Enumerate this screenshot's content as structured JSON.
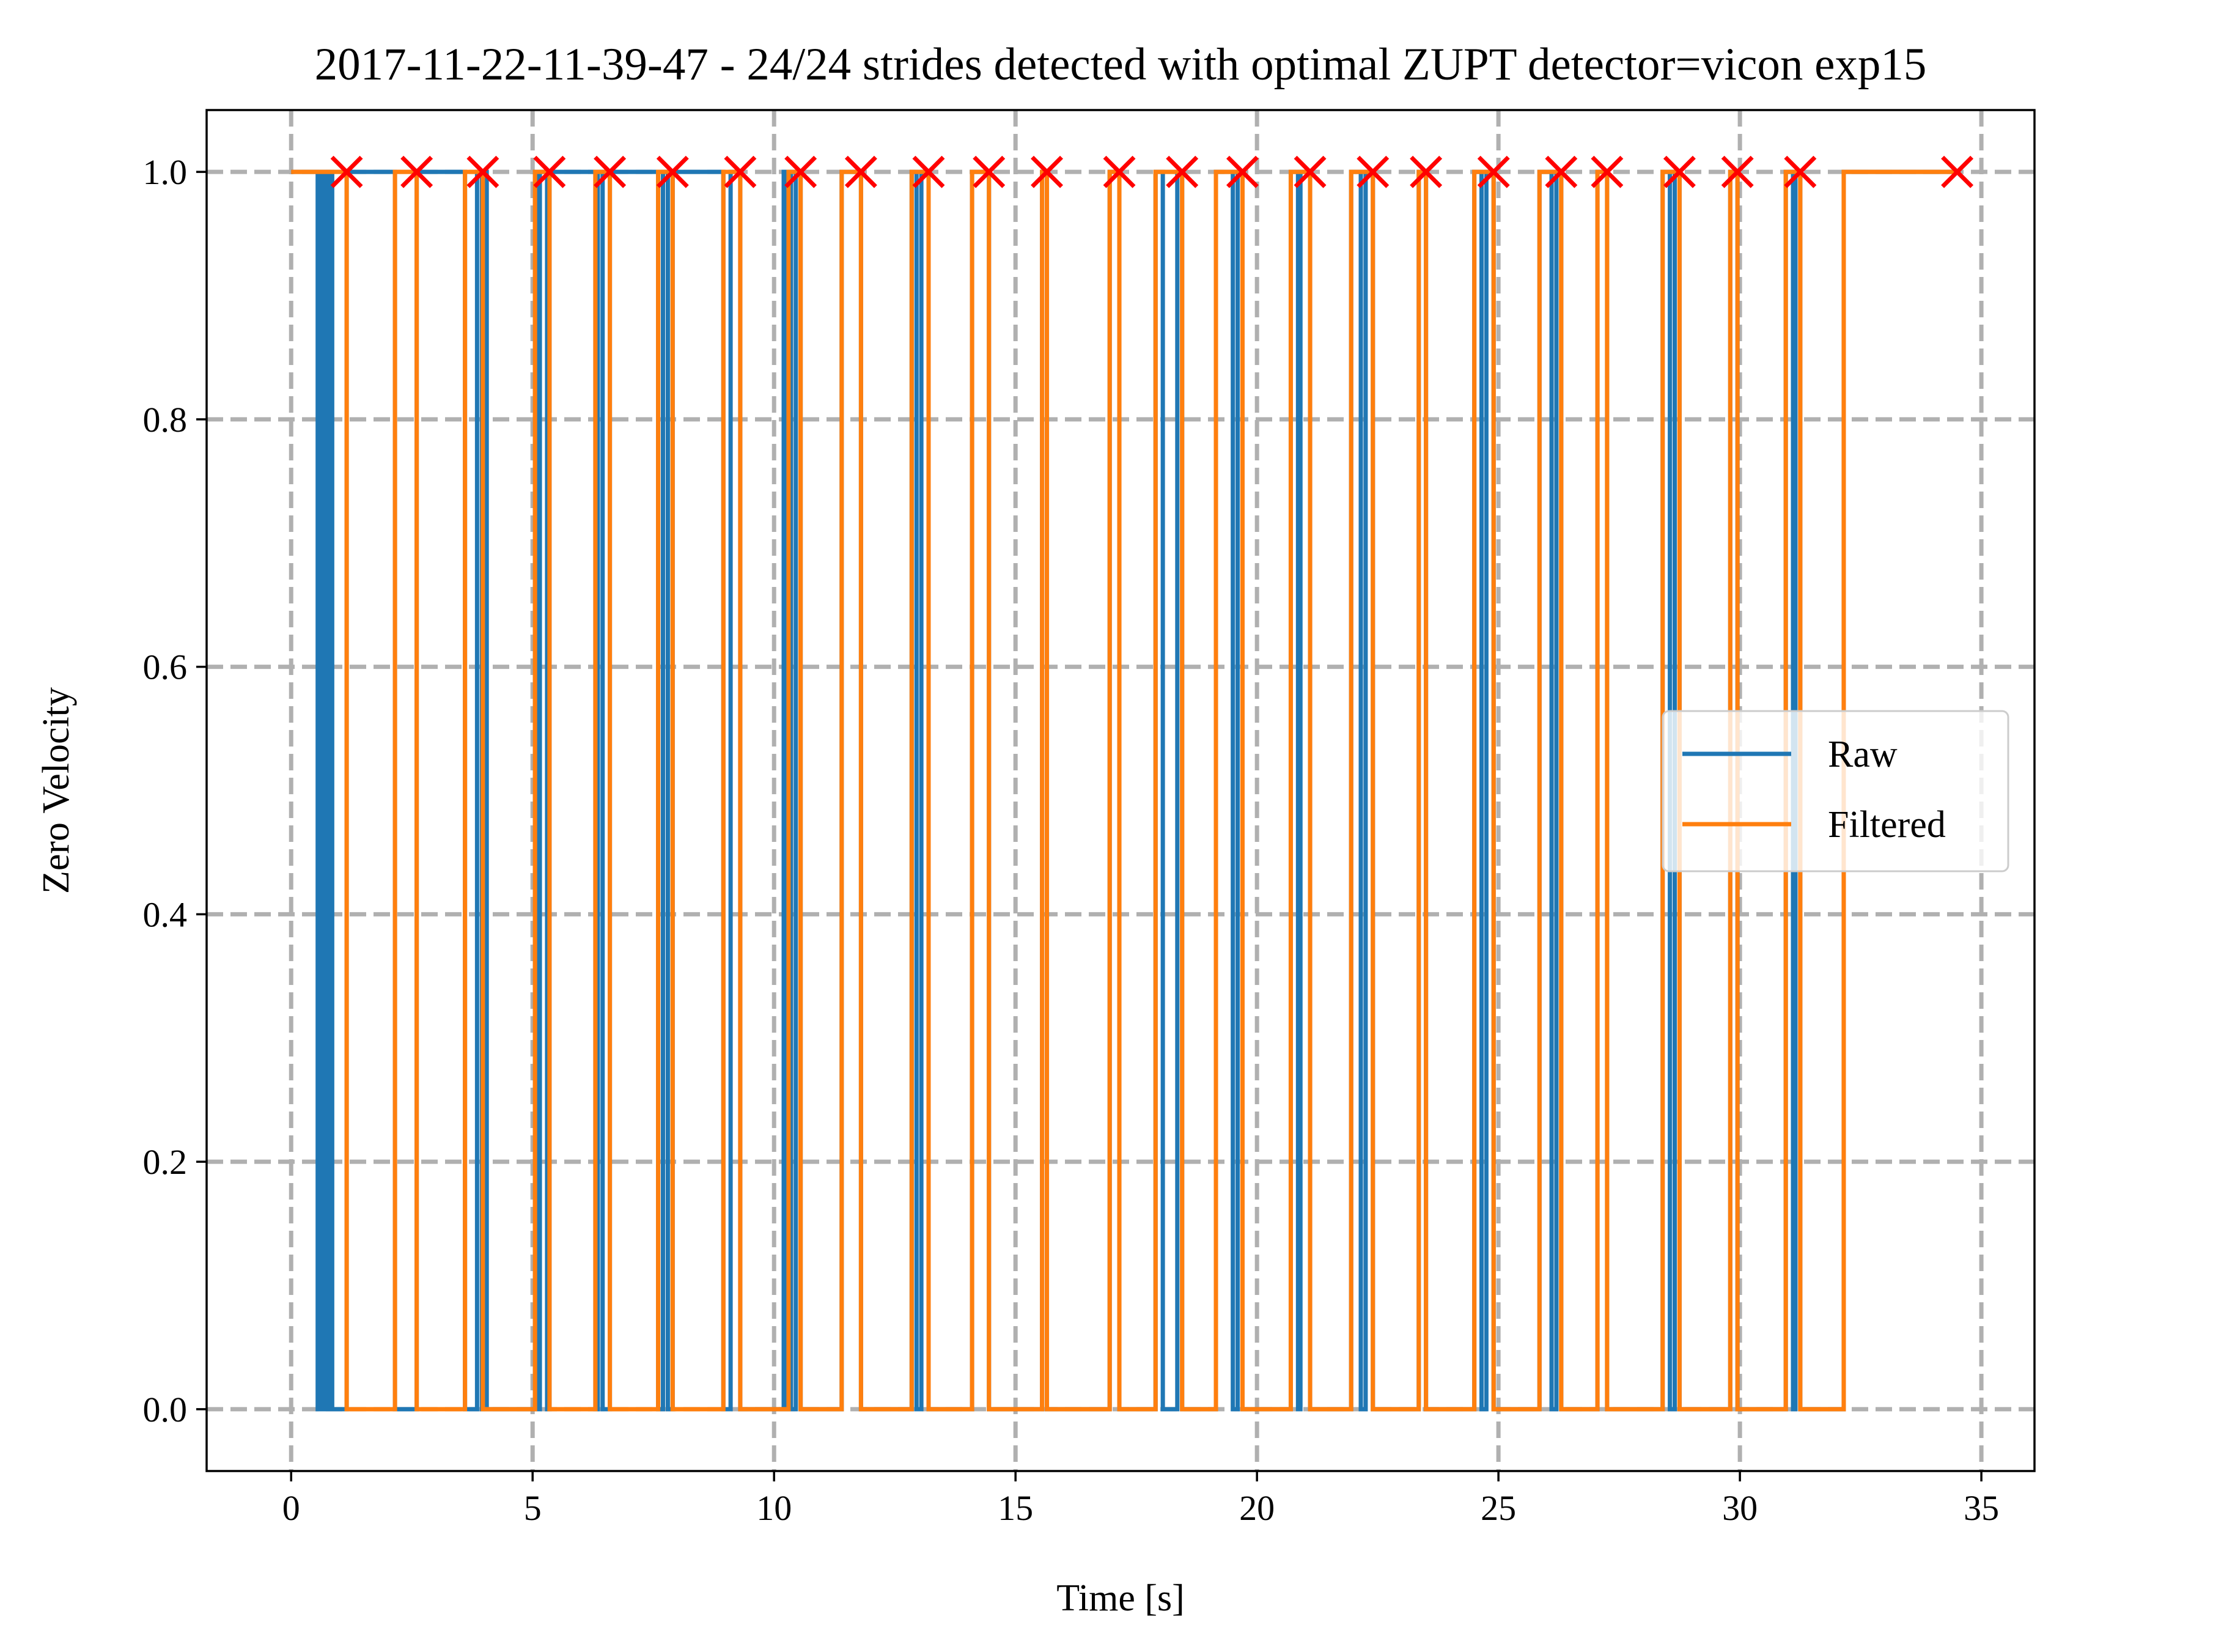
{
  "chart_data": {
    "type": "line",
    "title": "2017-11-22-11-39-47 - 24/24 strides detected with optimal ZUPT detector=vicon exp15",
    "xlabel": "Time [s]",
    "ylabel": "Zero Velocity",
    "xlim": [
      -1.75,
      36.1
    ],
    "ylim": [
      -0.05,
      1.05
    ],
    "xticks": [
      0,
      5,
      10,
      15,
      20,
      25,
      30,
      35
    ],
    "yticks": [
      0.0,
      0.2,
      0.4,
      0.6,
      0.8,
      1.0
    ],
    "xtick_labels": [
      "0",
      "5",
      "10",
      "15",
      "20",
      "25",
      "30",
      "35"
    ],
    "ytick_labels": [
      "0.0",
      "0.2",
      "0.4",
      "0.6",
      "0.8",
      "1.0"
    ],
    "grid": true,
    "legend_position": "center-right",
    "series": [
      {
        "name": "Raw",
        "color": "#1f77b4",
        "low_intervals": [
          [
            0.55,
            0.6
          ],
          [
            0.65,
            0.7
          ],
          [
            0.75,
            0.8
          ],
          [
            0.85,
            1.15
          ],
          [
            2.15,
            2.6
          ],
          [
            3.6,
            3.85
          ],
          [
            3.95,
            3.97
          ],
          [
            4.05,
            5.05
          ],
          [
            5.1,
            5.15
          ],
          [
            5.3,
            5.35
          ],
          [
            6.3,
            6.35
          ],
          [
            6.45,
            6.6
          ],
          [
            7.6,
            7.7
          ],
          [
            7.8,
            7.9
          ],
          [
            8.95,
            9.1
          ],
          [
            9.3,
            10.2
          ],
          [
            10.25,
            10.3
          ],
          [
            10.35,
            10.45
          ],
          [
            10.55,
            11.4
          ],
          [
            11.8,
            12.85
          ],
          [
            12.95,
            13.05
          ],
          [
            13.2,
            14.1
          ],
          [
            14.45,
            15.55
          ],
          [
            15.65,
            16.95
          ],
          [
            17.15,
            17.9
          ],
          [
            18.05,
            18.35
          ],
          [
            18.45,
            19.15
          ],
          [
            19.5,
            19.6
          ],
          [
            19.7,
            20.7
          ],
          [
            20.85,
            20.9
          ],
          [
            21.1,
            21.95
          ],
          [
            22.15,
            22.25
          ],
          [
            22.4,
            23.35
          ],
          [
            23.5,
            24.5
          ],
          [
            24.65,
            24.75
          ],
          [
            24.9,
            25.85
          ],
          [
            26.1,
            26.2
          ],
          [
            26.3,
            27.05
          ],
          [
            27.25,
            28.4
          ],
          [
            28.55,
            28.65
          ],
          [
            28.75,
            29.8
          ],
          [
            29.95,
            30.95
          ],
          [
            31.1,
            31.15
          ],
          [
            31.25,
            32.15
          ]
        ]
      },
      {
        "name": "Filtered",
        "color": "#ff7f0e",
        "low_intervals": [
          [
            1.15,
            2.15
          ],
          [
            2.6,
            3.6
          ],
          [
            3.97,
            5.05
          ],
          [
            5.35,
            6.3
          ],
          [
            6.6,
            7.6
          ],
          [
            7.9,
            8.95
          ],
          [
            9.3,
            10.3
          ],
          [
            10.55,
            11.4
          ],
          [
            11.8,
            12.85
          ],
          [
            13.2,
            14.1
          ],
          [
            14.45,
            15.55
          ],
          [
            15.65,
            16.95
          ],
          [
            17.15,
            17.9
          ],
          [
            18.45,
            19.15
          ],
          [
            19.7,
            20.7
          ],
          [
            21.1,
            21.95
          ],
          [
            22.4,
            23.35
          ],
          [
            23.5,
            24.5
          ],
          [
            24.9,
            25.85
          ],
          [
            26.3,
            27.05
          ],
          [
            27.25,
            28.4
          ],
          [
            28.75,
            29.8
          ],
          [
            29.95,
            30.95
          ],
          [
            31.25,
            32.15
          ]
        ]
      }
    ],
    "x_range": [
      0.0,
      34.5
    ],
    "stride_markers": {
      "color": "#ff0000",
      "y": 1.0,
      "x": [
        1.15,
        2.6,
        3.97,
        5.35,
        6.6,
        7.9,
        9.3,
        10.55,
        11.8,
        13.2,
        14.45,
        15.65,
        17.15,
        18.45,
        19.7,
        21.1,
        22.4,
        23.5,
        24.9,
        26.3,
        27.25,
        28.75,
        29.95,
        31.25,
        34.5
      ]
    }
  }
}
